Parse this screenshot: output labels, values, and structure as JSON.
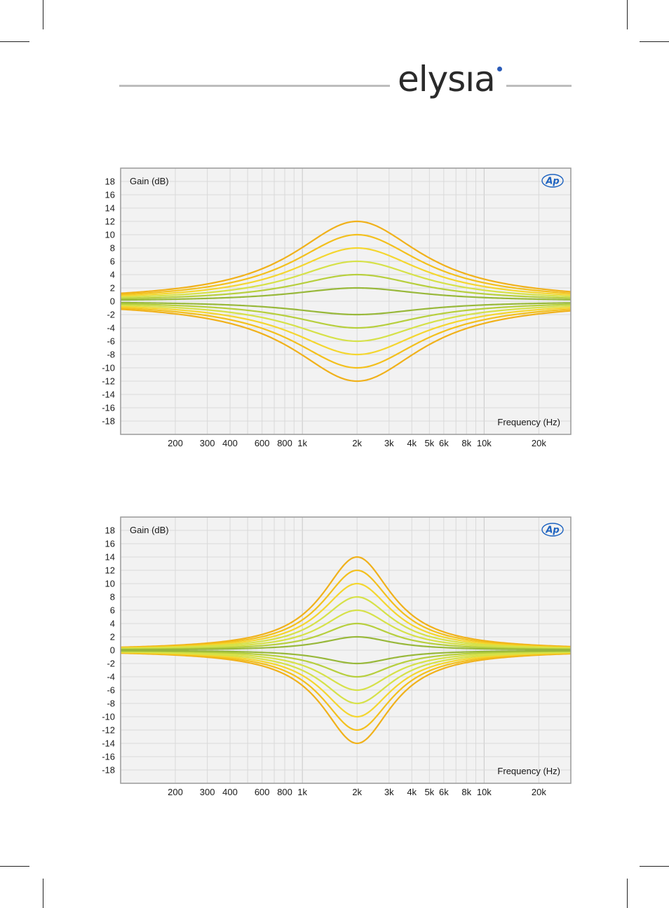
{
  "brand": {
    "name": "elysıa",
    "dot_color": "#2a5bb8"
  },
  "badge": {
    "text": "Ap",
    "color": "#1e63c0"
  },
  "colors": {
    "plot_bg": "#f2f2f2",
    "grid": "#d9d9d9",
    "frame": "#9a9a9a",
    "series": [
      "#7aa62e",
      "#98b83a",
      "#b7cf3d",
      "#d6e148",
      "#f4d62e",
      "#f3c01c",
      "#f0b11a"
    ]
  },
  "chart_data": [
    {
      "type": "line",
      "title": "",
      "ylabel": "Gain (dB)",
      "xlabel": "Frequency (Hz)",
      "x_scale": "log",
      "xlim": [
        100,
        30000
      ],
      "ylim": [
        -20,
        20
      ],
      "y_ticks": [
        "18",
        "16",
        "14",
        "12",
        "10",
        "8",
        "6",
        "4",
        "2",
        "0",
        "-2",
        "-4",
        "-6",
        "-8",
        "-10",
        "-12",
        "-14",
        "-16",
        "-18"
      ],
      "x_tick_labels": [
        {
          "value": 200,
          "label": "200"
        },
        {
          "value": 300,
          "label": "300"
        },
        {
          "value": 400,
          "label": "400"
        },
        {
          "value": 600,
          "label": "600"
        },
        {
          "value": 800,
          "label": "800"
        },
        {
          "value": 1000,
          "label": "1k"
        },
        {
          "value": 2000,
          "label": "2k"
        },
        {
          "value": 3000,
          "label": "3k"
        },
        {
          "value": 4000,
          "label": "4k"
        },
        {
          "value": 5000,
          "label": "5k"
        },
        {
          "value": 6000,
          "label": "6k"
        },
        {
          "value": 8000,
          "label": "8k"
        },
        {
          "value": 10000,
          "label": "10k"
        },
        {
          "value": 20000,
          "label": "20k"
        }
      ],
      "grid": true,
      "center_frequency": 2000,
      "curve_width_octaves": 2.3,
      "series": [
        {
          "peak": 2
        },
        {
          "peak": 4
        },
        {
          "peak": 6
        },
        {
          "peak": 8
        },
        {
          "peak": 10
        },
        {
          "peak": 12
        },
        {
          "peak": -2
        },
        {
          "peak": -4
        },
        {
          "peak": -6
        },
        {
          "peak": -8
        },
        {
          "peak": -10
        },
        {
          "peak": -12
        }
      ]
    },
    {
      "type": "line",
      "title": "",
      "ylabel": "Gain (dB)",
      "xlabel": "Frequency (Hz)",
      "x_scale": "log",
      "xlim": [
        100,
        30000
      ],
      "ylim": [
        -20,
        20
      ],
      "y_ticks": [
        "18",
        "16",
        "14",
        "12",
        "10",
        "8",
        "6",
        "4",
        "2",
        "0",
        "-2",
        "-4",
        "-6",
        "-8",
        "-10",
        "-12",
        "-14",
        "-16",
        "-18"
      ],
      "x_tick_labels": [
        {
          "value": 200,
          "label": "200"
        },
        {
          "value": 300,
          "label": "300"
        },
        {
          "value": 400,
          "label": "400"
        },
        {
          "value": 600,
          "label": "600"
        },
        {
          "value": 800,
          "label": "800"
        },
        {
          "value": 1000,
          "label": "1k"
        },
        {
          "value": 2000,
          "label": "2k"
        },
        {
          "value": 3000,
          "label": "3k"
        },
        {
          "value": 4000,
          "label": "4k"
        },
        {
          "value": 5000,
          "label": "5k"
        },
        {
          "value": 6000,
          "label": "6k"
        },
        {
          "value": 8000,
          "label": "8k"
        },
        {
          "value": 10000,
          "label": "10k"
        },
        {
          "value": 20000,
          "label": "20k"
        }
      ],
      "grid": true,
      "center_frequency": 2000,
      "curve_width_octaves": 1.25,
      "series": [
        {
          "peak": 2
        },
        {
          "peak": 4
        },
        {
          "peak": 6
        },
        {
          "peak": 8
        },
        {
          "peak": 10
        },
        {
          "peak": 12
        },
        {
          "peak": 14
        },
        {
          "peak": -2
        },
        {
          "peak": -4
        },
        {
          "peak": -6
        },
        {
          "peak": -8
        },
        {
          "peak": -10
        },
        {
          "peak": -12
        },
        {
          "peak": -14
        }
      ]
    }
  ]
}
